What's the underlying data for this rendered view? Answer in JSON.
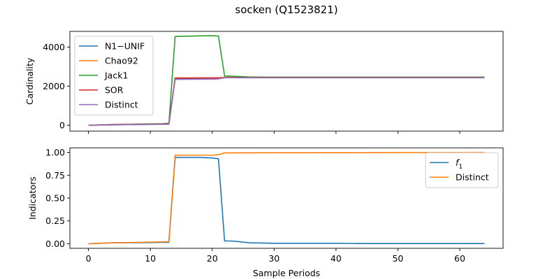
{
  "figure": {
    "title": "socken (Q1523821)",
    "xlabel": "Sample Periods"
  },
  "chart_data": [
    {
      "type": "line",
      "ylabel": "Cardinality",
      "xlim": [
        -3,
        67
      ],
      "ylim": [
        -300,
        4800
      ],
      "xticks": [
        0,
        10,
        20,
        30,
        40,
        50,
        60
      ],
      "yticks": [
        0,
        2000,
        4000
      ],
      "show_xtick_labels": false,
      "legend_position": "upper-left",
      "series": [
        {
          "name": "N1−UNIF",
          "color": "#1f77b4",
          "x": [
            0,
            4,
            8,
            12,
            13,
            14,
            20,
            21,
            22,
            26,
            30,
            40,
            50,
            60,
            64
          ],
          "y": [
            0,
            25,
            40,
            55,
            60,
            2400,
            2410,
            2420,
            2440,
            2440,
            2440,
            2440,
            2440,
            2440,
            2440
          ]
        },
        {
          "name": "Chao92",
          "color": "#ff7f0e",
          "x": [
            0,
            4,
            8,
            12,
            13,
            14,
            20,
            21,
            22,
            26,
            30,
            40,
            50,
            60,
            64
          ],
          "y": [
            0,
            30,
            45,
            60,
            70,
            2420,
            2420,
            2420,
            2450,
            2450,
            2450,
            2450,
            2450,
            2450,
            2450
          ]
        },
        {
          "name": "Jack1",
          "color": "#2ca02c",
          "x": [
            0,
            4,
            8,
            12,
            13,
            14,
            18,
            20,
            21,
            22,
            23,
            26,
            30,
            40,
            50,
            60,
            64
          ],
          "y": [
            0,
            40,
            60,
            80,
            100,
            4540,
            4570,
            4580,
            4560,
            2520,
            2510,
            2470,
            2460,
            2460,
            2460,
            2460,
            2460
          ]
        },
        {
          "name": "SOR",
          "color": "#d62728",
          "x": [
            0,
            4,
            8,
            12,
            13,
            14,
            20,
            21,
            22,
            26,
            30,
            40,
            50,
            60,
            64
          ],
          "y": [
            0,
            30,
            45,
            60,
            70,
            2410,
            2420,
            2420,
            2440,
            2440,
            2440,
            2440,
            2440,
            2440,
            2440
          ]
        },
        {
          "name": "Distinct",
          "color": "#9467bd",
          "x": [
            0,
            4,
            8,
            12,
            13,
            14,
            20,
            21,
            22,
            26,
            30,
            40,
            50,
            60,
            64
          ],
          "y": [
            0,
            20,
            35,
            50,
            55,
            2350,
            2360,
            2370,
            2430,
            2430,
            2430,
            2430,
            2430,
            2430,
            2430
          ]
        }
      ]
    },
    {
      "type": "line",
      "ylabel": "Indicators",
      "xlim": [
        -3,
        67
      ],
      "ylim": [
        -0.05,
        1.05
      ],
      "xticks": [
        0,
        10,
        20,
        30,
        40,
        50,
        60
      ],
      "yticks": [
        0.0,
        0.25,
        0.5,
        0.75,
        1.0
      ],
      "ytick_labels": [
        "0.00",
        "0.25",
        "0.50",
        "0.75",
        "1.00"
      ],
      "show_xtick_labels": true,
      "legend_position": "upper-right",
      "series": [
        {
          "name": "f",
          "name_subscript": "1",
          "color": "#1f77b4",
          "x": [
            0,
            4,
            8,
            12,
            13,
            14,
            18,
            20,
            21,
            22,
            23,
            24,
            26,
            30,
            40,
            44,
            50,
            60,
            64
          ],
          "y": [
            0.0,
            0.01,
            0.012,
            0.015,
            0.015,
            0.945,
            0.945,
            0.94,
            0.93,
            0.03,
            0.03,
            0.025,
            0.01,
            0.005,
            0.005,
            0.002,
            0.002,
            0.002,
            0.002
          ]
        },
        {
          "name": "Distinct",
          "color": "#ff7f0e",
          "x": [
            0,
            4,
            8,
            12,
            13,
            14,
            18,
            20,
            21,
            22,
            24,
            26,
            30,
            40,
            50,
            60,
            64
          ],
          "y": [
            0.0,
            0.01,
            0.015,
            0.02,
            0.022,
            0.97,
            0.97,
            0.97,
            0.975,
            0.995,
            0.995,
            0.996,
            0.997,
            0.998,
            0.999,
            0.999,
            1.0
          ]
        }
      ]
    }
  ]
}
